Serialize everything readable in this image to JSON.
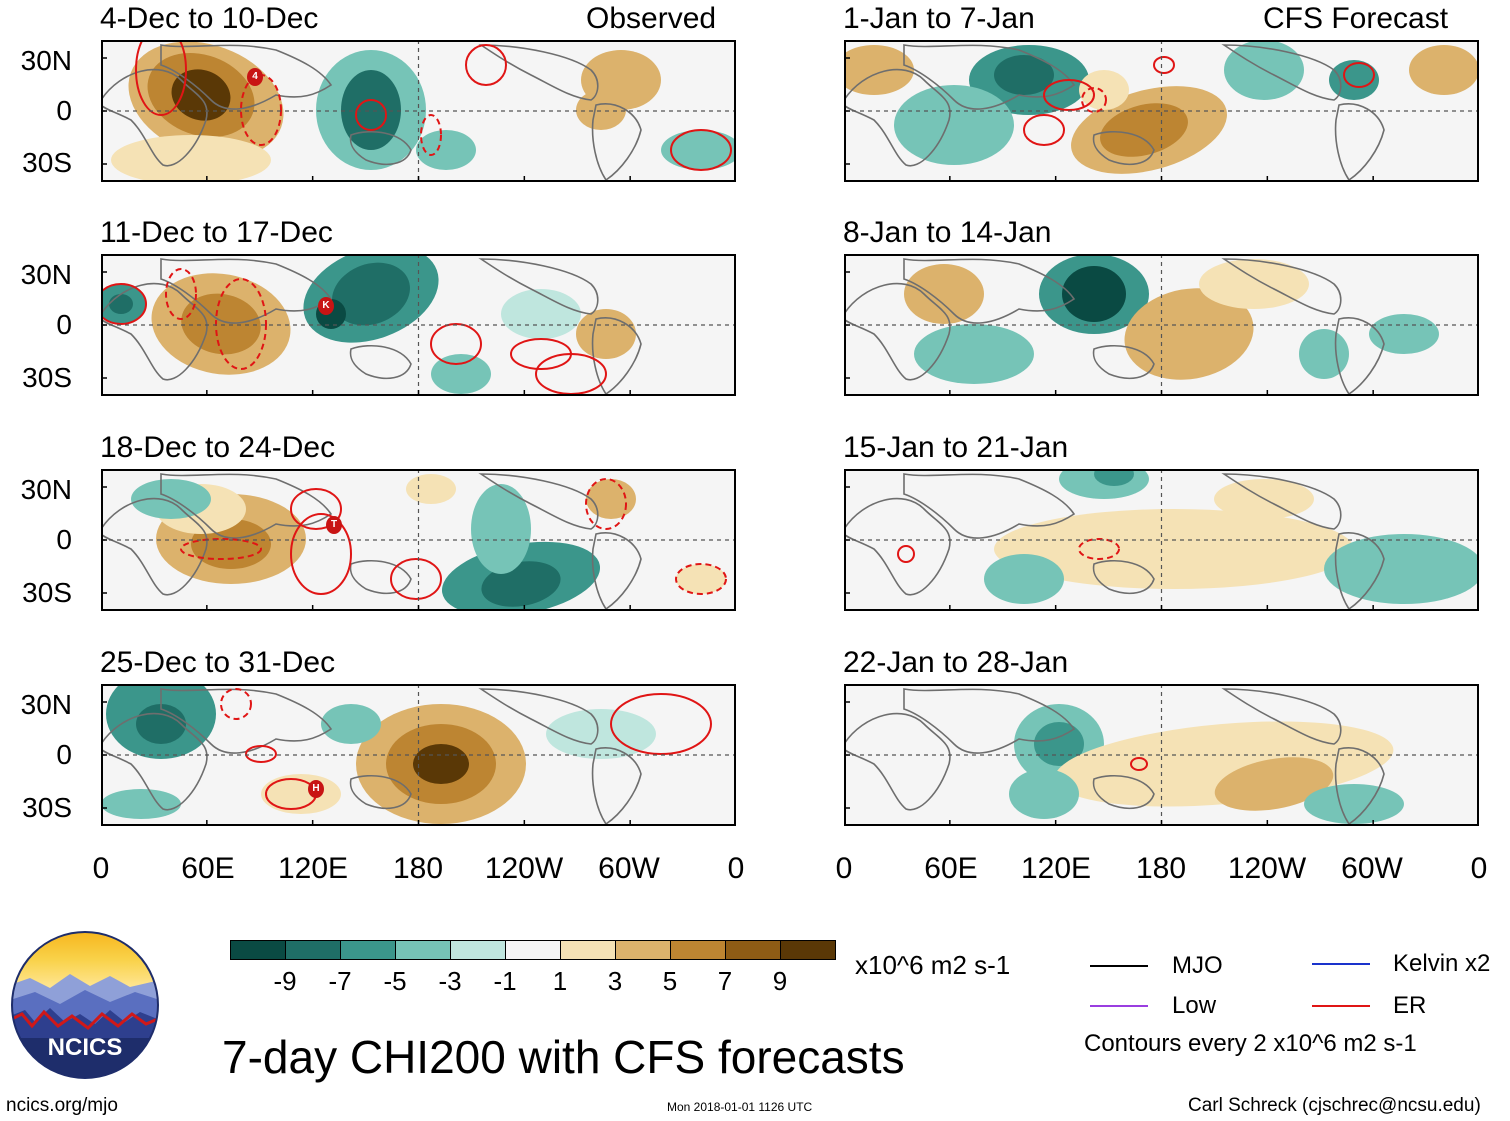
{
  "left_header": {
    "label": "Observed"
  },
  "right_header": {
    "label": "CFS Forecast"
  },
  "observed_panels": [
    {
      "label": "4-Dec to 10-Dec"
    },
    {
      "label": "11-Dec to 17-Dec"
    },
    {
      "label": "18-Dec to 24-Dec"
    },
    {
      "label": "25-Dec to 31-Dec"
    }
  ],
  "forecast_panels": [
    {
      "label": "1-Jan to 7-Jan"
    },
    {
      "label": "8-Jan to 14-Jan"
    },
    {
      "label": "15-Jan to 21-Jan"
    },
    {
      "label": "22-Jan to 28-Jan"
    }
  ],
  "lat_labels": [
    "30N",
    "0",
    "30S"
  ],
  "lon_labels": [
    "0",
    "60E",
    "120E",
    "180",
    "120W",
    "60W",
    "0"
  ],
  "storm_markers": [
    "4",
    "K",
    "T",
    "H"
  ],
  "colorbar": {
    "unit": "x10^6 m2 s-1",
    "ticks": [
      "-9",
      "-7",
      "-5",
      "-3",
      "-1",
      "1",
      "3",
      "5",
      "7",
      "9"
    ],
    "colors": [
      "#0a4a43",
      "#1f6e66",
      "#3b968b",
      "#76c4b7",
      "#bfe6de",
      "#f5f5f5",
      "#f5e2b5",
      "#dcb26c",
      "#bd8532",
      "#8e5c15",
      "#5a3806"
    ]
  },
  "legend": {
    "items": [
      {
        "label": "MJO",
        "color": "#000000"
      },
      {
        "label": "Kelvin x2",
        "color": "#1a33cc"
      },
      {
        "label": "Low",
        "color": "#9a3ee0"
      },
      {
        "label": "ER",
        "color": "#e01515"
      }
    ],
    "note": "Contours every 2 x10^6 m2 s-1"
  },
  "main_title": "7-day CHI200 with CFS forecasts",
  "logo_text": "NCICS",
  "footer": {
    "url": "ncics.org/mjo",
    "timestamp": "Mon 2018-01-01 1126 UTC",
    "credit": "Carl Schreck (cjschrec@ncsu.edu)"
  }
}
